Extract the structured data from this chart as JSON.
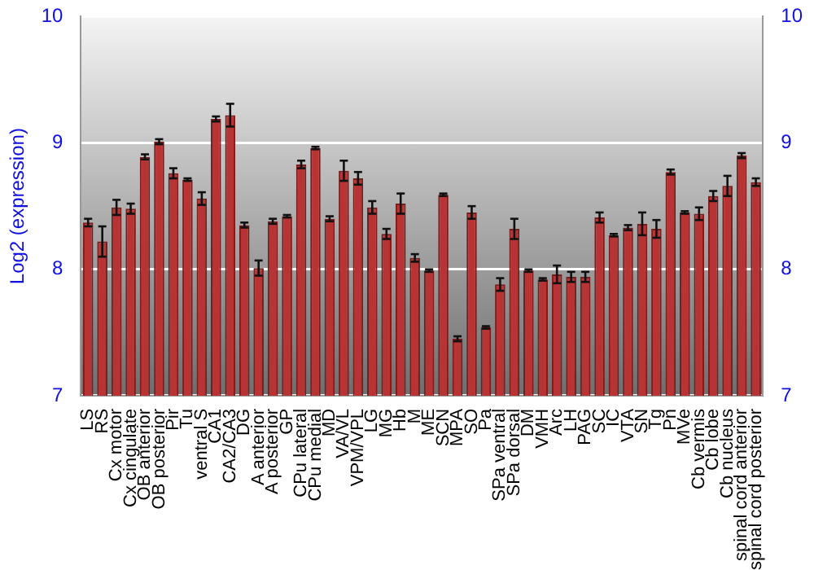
{
  "chart_data": {
    "type": "bar",
    "ylabel": "Log2 (expression)",
    "categories": [
      "LS",
      "RS",
      "Cx motor",
      "Cx cingulate",
      "OB anterior",
      "OB posterior",
      "Pir",
      "Tu",
      "ventral S",
      "CA1",
      "CA2/CA3",
      "DG",
      "A anterior",
      "A posterior",
      "GP",
      "CPu lateral",
      "CPu medial",
      "MD",
      "VA/VL",
      "VPM/VPL",
      "LG",
      "MG",
      "Hb",
      "M",
      "ME",
      "SCN",
      "MPA",
      "SO",
      "Pa",
      "SPa ventral",
      "SPa dorsal",
      "DM",
      "VMH",
      "Arc",
      "LH",
      "PAG",
      "SC",
      "IC",
      "VTA",
      "SN",
      "Tg",
      "Pn",
      "MVe",
      "Cb vermis",
      "Cb lobe",
      "Cb nucleus",
      "spinal cord anterior",
      "spinal cord posterior"
    ],
    "values": [
      8.37,
      8.22,
      8.49,
      8.48,
      8.89,
      9.01,
      8.76,
      8.71,
      8.56,
      9.19,
      9.22,
      8.35,
      8.01,
      8.38,
      8.42,
      8.83,
      8.96,
      8.4,
      8.78,
      8.72,
      8.49,
      8.28,
      8.52,
      8.09,
      7.99,
      8.59,
      7.45,
      8.45,
      7.54,
      7.88,
      8.32,
      7.99,
      7.92,
      7.96,
      7.94,
      7.94,
      8.41,
      8.27,
      8.33,
      8.36,
      8.32,
      8.77,
      8.45,
      8.44,
      8.58,
      8.66,
      8.9,
      8.69
    ],
    "errors": [
      0.03,
      0.12,
      0.06,
      0.04,
      0.02,
      0.02,
      0.04,
      0.01,
      0.05,
      0.02,
      0.09,
      0.02,
      0.06,
      0.02,
      0.01,
      0.03,
      0.01,
      0.02,
      0.08,
      0.05,
      0.05,
      0.04,
      0.08,
      0.03,
      0.01,
      0.01,
      0.02,
      0.05,
      0.01,
      0.05,
      0.08,
      0.01,
      0.01,
      0.07,
      0.04,
      0.04,
      0.04,
      0.01,
      0.02,
      0.09,
      0.07,
      0.02,
      0.01,
      0.05,
      0.04,
      0.08,
      0.02,
      0.03
    ],
    "color": "#b83434",
    "ylim": [
      7,
      10
    ],
    "yticks": [
      7,
      8,
      9,
      10
    ],
    "y2lim": [
      7,
      10
    ],
    "y2ticks": [
      7,
      8,
      9,
      10
    ],
    "grid": "y",
    "legend": false
  }
}
